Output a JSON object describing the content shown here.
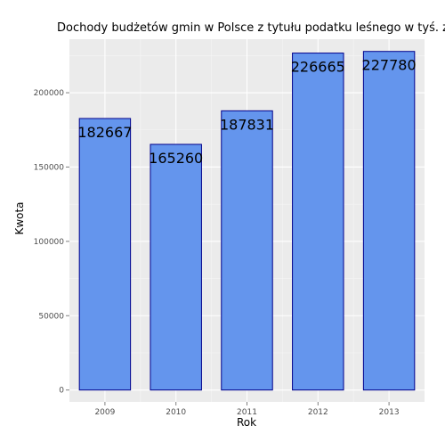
{
  "chart_data": {
    "type": "bar",
    "title": "Dochody budżetów gmin w Polsce z tytułu podatku leśnego w tyś. zł",
    "xlabel": "Rok",
    "ylabel": "Kwota",
    "categories": [
      "2009",
      "2010",
      "2011",
      "2012",
      "2013"
    ],
    "values": [
      182667,
      165260,
      187831,
      226665,
      227780
    ],
    "data_labels": [
      "182667",
      "165260",
      "187831",
      "226665",
      "227780"
    ],
    "ylim": [
      -8000,
      236000
    ],
    "yticks": [
      0,
      50000,
      100000,
      150000,
      200000
    ],
    "ytick_labels": [
      "0",
      "50000",
      "100000",
      "150000",
      "200000"
    ],
    "grid": true,
    "legend": "none",
    "colors": {
      "panel_background": "#ebebeb",
      "grid_major": "#ffffff",
      "grid_minor": "#f5f5f5",
      "bar_fill": "#6495ed",
      "bar_stroke": "#00008b"
    }
  }
}
